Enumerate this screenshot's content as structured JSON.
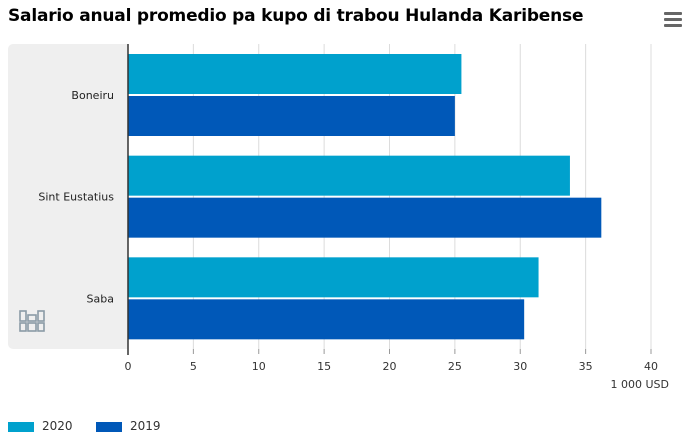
{
  "title": "Salario anual promedio pa kupo di trabou Hulanda Karibense",
  "menu_icon": "hamburger-menu-icon",
  "logo_icon": "cbs-logo-icon",
  "colors": {
    "2020": "#00a1cd",
    "2019": "#0058b8",
    "plot_bg": "#efefef",
    "grid": "#dcdcdc"
  },
  "chart_data": {
    "type": "bar",
    "orientation": "horizontal",
    "title": "Salario anual promedio pa kupo di trabou Hulanda Karibense",
    "categories": [
      "Boneiru",
      "Sint Eustatius",
      "Saba"
    ],
    "series": [
      {
        "name": "2020",
        "values": [
          25.5,
          33.8,
          31.4
        ]
      },
      {
        "name": "2019",
        "values": [
          25.0,
          36.2,
          30.3
        ]
      }
    ],
    "xlabel": "1 000 USD",
    "ylabel": "",
    "xlim": [
      0,
      40
    ],
    "ticks": [
      "0",
      "5",
      "10",
      "15",
      "20",
      "25",
      "30",
      "35",
      "40"
    ],
    "grid": true,
    "legend": "bottom-left"
  }
}
